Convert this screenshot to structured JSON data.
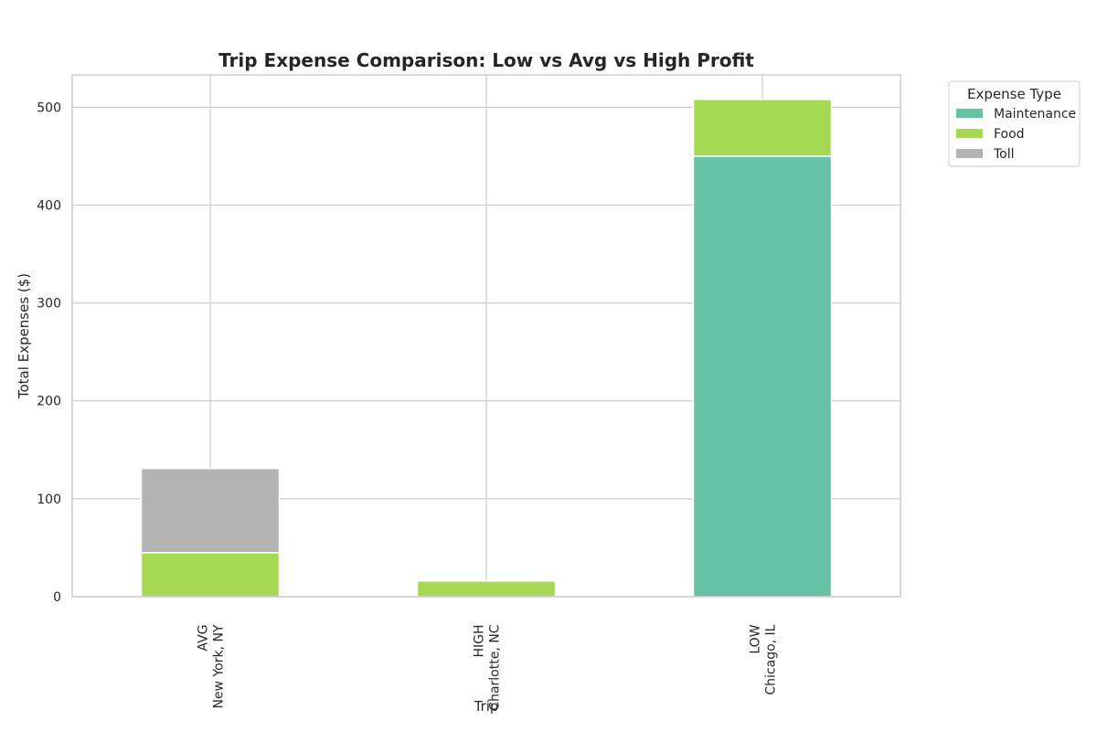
{
  "chart_data": {
    "type": "bar",
    "stacked": true,
    "title": "Trip Expense Comparison: Low vs Avg vs High Profit",
    "xlabel": "Trip",
    "ylabel": "Total Expenses ($)",
    "categories": [
      [
        "AVG",
        "New York, NY"
      ],
      [
        "HIGH",
        "Charlotte, NC"
      ],
      [
        "LOW",
        "Chicago, IL"
      ]
    ],
    "series": [
      {
        "name": "Maintenance",
        "color": "#66c2a5",
        "values": [
          0,
          0,
          450
        ]
      },
      {
        "name": "Food",
        "color": "#a6d854",
        "values": [
          45,
          16,
          58
        ]
      },
      {
        "name": "Toll",
        "color": "#b3b3b3",
        "values": [
          86,
          0,
          0
        ]
      }
    ],
    "ylim": [
      0,
      533
    ],
    "yticks": [
      0,
      100,
      200,
      300,
      400,
      500
    ],
    "grid": true,
    "legend": {
      "title": "Expense Type",
      "placement": "outside-top-right"
    }
  }
}
